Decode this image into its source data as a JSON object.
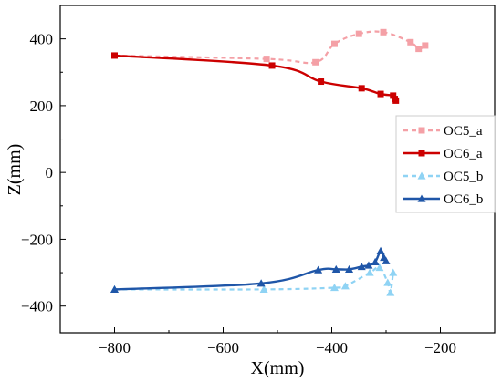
{
  "chart_data": {
    "type": "line",
    "xlabel": "X(mm)",
    "ylabel": "Z(mm)",
    "xlim": [
      -900,
      -100
    ],
    "ylim": [
      -480,
      500
    ],
    "xticks": [
      -800,
      -600,
      -400,
      -200
    ],
    "xtick_labels": [
      "−800",
      "−600",
      "−400",
      "−200"
    ],
    "yticks": [
      -400,
      -200,
      0,
      200,
      400
    ],
    "ytick_labels": [
      "−400",
      "−200",
      "0",
      "200",
      "400"
    ],
    "grid": false,
    "legend_position": "right",
    "series": [
      {
        "name": "OC5_a",
        "color": "#f4a0a6",
        "line": "dashed",
        "marker": "square",
        "x": [
          -800,
          -520,
          -430,
          -395,
          -350,
          -305,
          -255,
          -240,
          -228
        ],
        "y": [
          350,
          340,
          330,
          385,
          415,
          420,
          390,
          370,
          380
        ]
      },
      {
        "name": "OC6_a",
        "color": "#cc0000",
        "line": "solid",
        "marker": "square",
        "x": [
          -800,
          -510,
          -420,
          -345,
          -310,
          -287,
          -284,
          -282
        ],
        "y": [
          350,
          320,
          272,
          252,
          235,
          230,
          220,
          215
        ]
      },
      {
        "name": "OC5_b",
        "color": "#8fd3f4",
        "line": "dashed",
        "marker": "triangle",
        "x": [
          -800,
          -525,
          -395,
          -375,
          -330,
          -312,
          -297,
          -292,
          -287
        ],
        "y": [
          -350,
          -350,
          -345,
          -340,
          -300,
          -285,
          -330,
          -360,
          -300
        ]
      },
      {
        "name": "OC6_b",
        "color": "#1f56a8",
        "line": "solid",
        "marker": "triangle",
        "x": [
          -800,
          -530,
          -425,
          -392,
          -368,
          -345,
          -332,
          -320,
          -310,
          -304,
          -300
        ],
        "y": [
          -350,
          -332,
          -292,
          -290,
          -290,
          -282,
          -278,
          -268,
          -235,
          -255,
          -265
        ]
      }
    ]
  }
}
